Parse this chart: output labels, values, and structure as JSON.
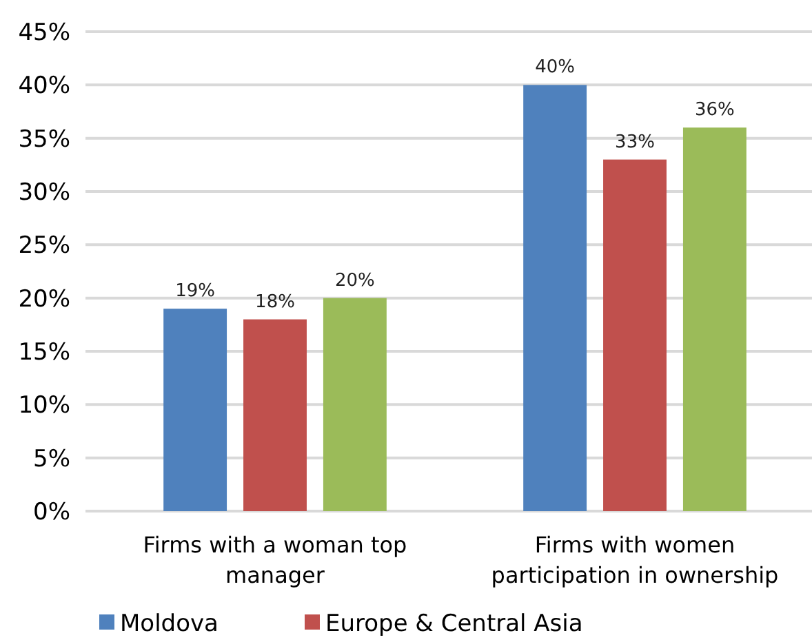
{
  "chart_data": {
    "type": "bar",
    "categories": [
      "Firms with a woman top manager",
      "Firms with women participation in ownership"
    ],
    "series": [
      {
        "name": "Moldova",
        "color": "#4f81bd",
        "values": [
          19,
          40
        ],
        "value_labels": [
          "19%",
          "40%"
        ]
      },
      {
        "name": "Europe & Central Asia",
        "color": "#c0504d",
        "values": [
          18,
          33
        ],
        "value_labels": [
          "18%",
          "33%"
        ]
      },
      {
        "color": "#9bbb59",
        "values": [
          20,
          36
        ],
        "value_labels": [
          "20%",
          "36%"
        ]
      }
    ],
    "ylim": [
      0,
      45
    ],
    "yticks": [
      {
        "value": 0,
        "label": "0%"
      },
      {
        "value": 5,
        "label": "5%"
      },
      {
        "value": 10,
        "label": "10%"
      },
      {
        "value": 15,
        "label": "15%"
      },
      {
        "value": 20,
        "label": "20%"
      },
      {
        "value": 25,
        "label": "25%"
      },
      {
        "value": 30,
        "label": "30%"
      },
      {
        "value": 35,
        "label": "35%"
      },
      {
        "value": 40,
        "label": "40%"
      },
      {
        "value": 45,
        "label": "45%"
      }
    ],
    "grid": "y",
    "legend": "bottom"
  }
}
